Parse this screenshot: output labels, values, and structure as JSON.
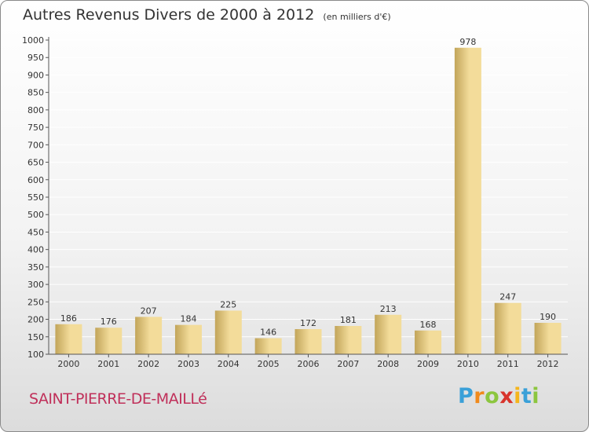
{
  "title": "Autres Revenus Divers de 2000 à 2012",
  "subtitle": "(en milliers d'€)",
  "commune": "SAINT-PIERRE-DE-MAILLé",
  "logo": {
    "letters": [
      "P",
      "r",
      "o",
      "x",
      "i",
      "t",
      "i"
    ],
    "colors": [
      "#3aa0d8",
      "#f08a1c",
      "#8cc63f",
      "#d8342c",
      "#f5b51c",
      "#3aa0d8",
      "#8cc63f"
    ]
  },
  "colors": {
    "bar_light": "#f3dc9a",
    "bar_dark": "#c2a55a",
    "grid": "#ffffff",
    "axis": "#555555",
    "label": "#333333"
  },
  "chart_data": {
    "type": "bar",
    "categories": [
      "2000",
      "2001",
      "2002",
      "2003",
      "2004",
      "2005",
      "2006",
      "2007",
      "2008",
      "2009",
      "2010",
      "2011",
      "2012"
    ],
    "values": [
      186,
      176,
      207,
      184,
      225,
      146,
      172,
      181,
      213,
      168,
      978,
      247,
      190
    ],
    "ylim": [
      100,
      1000
    ],
    "yticks": [
      100,
      150,
      200,
      250,
      300,
      350,
      400,
      450,
      500,
      550,
      600,
      650,
      700,
      750,
      800,
      850,
      900,
      950,
      1000
    ],
    "grid": true,
    "data_labels": true
  }
}
